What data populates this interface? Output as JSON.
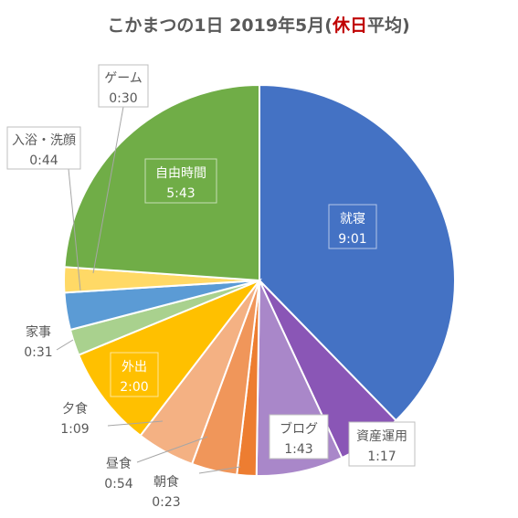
{
  "chart_data": {
    "type": "pie",
    "title": {
      "prefix": "こかまつの1日 2019年5月(",
      "highlight": "休日",
      "suffix": "平均)",
      "highlight_color": "#c00000"
    },
    "unit": "h:mm",
    "slices": [
      {
        "name": "就寝",
        "value": "9:01",
        "minutes": 541,
        "color": "#4472c4"
      },
      {
        "name": "資産運用",
        "value": "1:17",
        "minutes": 77,
        "color": "#8a56b6"
      },
      {
        "name": "ブログ",
        "value": "1:43",
        "minutes": 103,
        "color": "#a987c9"
      },
      {
        "name": "朝食",
        "value": "0:23",
        "minutes": 23,
        "color": "#ed7d31"
      },
      {
        "name": "昼食",
        "value": "0:54",
        "minutes": 54,
        "color": "#f0965a"
      },
      {
        "name": "夕食",
        "value": "1:09",
        "minutes": 69,
        "color": "#f4b183"
      },
      {
        "name": "外出",
        "value": "2:00",
        "minutes": 120,
        "color": "#ffc000"
      },
      {
        "name": "家事",
        "value": "0:31",
        "minutes": 31,
        "color": "#a9d18e"
      },
      {
        "name": "入浴・洗顔",
        "value": "0:44",
        "minutes": 44,
        "color": "#5b9bd5"
      },
      {
        "name": "ゲーム",
        "value": "0:30",
        "minutes": 30,
        "color": "#ffd966"
      },
      {
        "name": "自由時間",
        "value": "5:43",
        "minutes": 343,
        "color": "#70ad47"
      }
    ]
  }
}
